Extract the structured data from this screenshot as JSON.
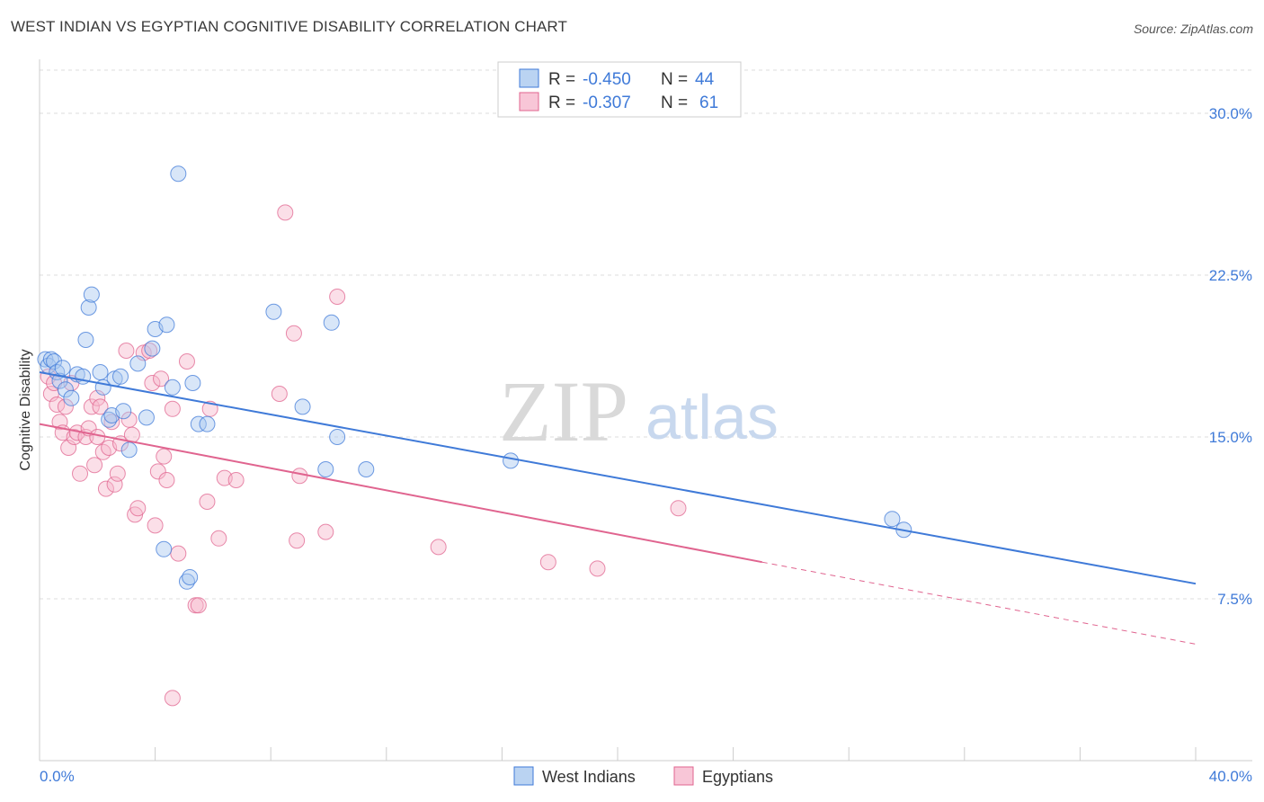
{
  "title": "WEST INDIAN VS EGYPTIAN COGNITIVE DISABILITY CORRELATION CHART",
  "source": "Source: ZipAtlas.com",
  "colors": {
    "blue": "#3f7ad8",
    "pink": "#e0648f",
    "blue_fill": "#a9c8ef",
    "pink_fill": "#f6b8cd"
  },
  "legend": {
    "row1": {
      "r_label": "R =",
      "r_value": "-0.450",
      "n_label": "N =",
      "n_value": "44"
    },
    "row2": {
      "r_label": "R =",
      "r_value": "-0.307",
      "n_label": "N =",
      "n_value": "61"
    }
  },
  "bottom_legend": {
    "series1": "West Indians",
    "series2": "Egyptians"
  },
  "watermark": {
    "zip": "ZIP",
    "atlas": "atlas"
  },
  "chart_data": {
    "type": "scatter",
    "ylabel": "Cognitive Disability",
    "xlabel": "",
    "xlim": [
      0,
      40
    ],
    "ylim": [
      0,
      32
    ],
    "y_ticks": [
      {
        "value": 7.5,
        "label": "7.5%"
      },
      {
        "value": 15.0,
        "label": "15.0%"
      },
      {
        "value": 22.5,
        "label": "22.5%"
      },
      {
        "value": 30.0,
        "label": "30.0%"
      }
    ],
    "x_tick_labels": {
      "min": "0.0%",
      "max": "40.0%"
    },
    "series": [
      {
        "name": "West Indians",
        "r": -0.45,
        "n": 44,
        "trend": {
          "x0": 0,
          "y0": 18.0,
          "x1": 40,
          "y1": 8.2
        },
        "points": [
          [
            0.2,
            18.6
          ],
          [
            0.3,
            18.3
          ],
          [
            0.4,
            18.6
          ],
          [
            0.5,
            18.5
          ],
          [
            0.6,
            18.0
          ],
          [
            0.7,
            17.6
          ],
          [
            0.8,
            18.2
          ],
          [
            0.9,
            17.2
          ],
          [
            1.1,
            16.8
          ],
          [
            1.3,
            17.9
          ],
          [
            1.5,
            17.8
          ],
          [
            1.6,
            19.5
          ],
          [
            1.7,
            21.0
          ],
          [
            1.8,
            21.6
          ],
          [
            2.1,
            18.0
          ],
          [
            2.2,
            17.3
          ],
          [
            2.4,
            15.8
          ],
          [
            2.5,
            16.0
          ],
          [
            2.6,
            17.7
          ],
          [
            2.8,
            17.8
          ],
          [
            2.9,
            16.2
          ],
          [
            3.1,
            14.4
          ],
          [
            3.4,
            18.4
          ],
          [
            3.7,
            15.9
          ],
          [
            3.9,
            19.1
          ],
          [
            4.0,
            20.0
          ],
          [
            4.4,
            20.2
          ],
          [
            4.6,
            17.3
          ],
          [
            4.8,
            27.2
          ],
          [
            5.1,
            8.3
          ],
          [
            5.2,
            8.5
          ],
          [
            5.3,
            17.5
          ],
          [
            5.5,
            15.6
          ],
          [
            5.8,
            15.6
          ],
          [
            4.3,
            9.8
          ],
          [
            8.1,
            20.8
          ],
          [
            9.1,
            16.4
          ],
          [
            9.9,
            13.5
          ],
          [
            10.1,
            20.3
          ],
          [
            10.3,
            15.0
          ],
          [
            11.3,
            13.5
          ],
          [
            16.3,
            13.9
          ],
          [
            29.5,
            11.2
          ],
          [
            29.9,
            10.7
          ]
        ]
      },
      {
        "name": "Egyptians",
        "r": -0.307,
        "n": 61,
        "trend": {
          "x0": 0,
          "y0": 15.6,
          "x1": 25.0,
          "y1": 9.2,
          "dash_to": {
            "x": 40,
            "y": 5.4
          }
        },
        "points": [
          [
            0.3,
            17.8
          ],
          [
            0.4,
            17.0
          ],
          [
            0.5,
            17.5
          ],
          [
            0.6,
            16.5
          ],
          [
            0.7,
            15.7
          ],
          [
            0.8,
            15.2
          ],
          [
            0.9,
            16.4
          ],
          [
            1.0,
            14.5
          ],
          [
            1.1,
            17.5
          ],
          [
            1.2,
            15.0
          ],
          [
            1.3,
            15.2
          ],
          [
            1.4,
            13.3
          ],
          [
            1.6,
            15.0
          ],
          [
            1.7,
            15.4
          ],
          [
            1.8,
            16.4
          ],
          [
            1.9,
            13.7
          ],
          [
            2.0,
            16.8
          ],
          [
            2.1,
            16.4
          ],
          [
            2.2,
            14.3
          ],
          [
            2.3,
            12.6
          ],
          [
            2.4,
            14.5
          ],
          [
            2.5,
            15.7
          ],
          [
            2.6,
            12.8
          ],
          [
            2.7,
            13.3
          ],
          [
            2.8,
            14.7
          ],
          [
            3.0,
            19.0
          ],
          [
            3.1,
            15.8
          ],
          [
            3.2,
            15.1
          ],
          [
            3.3,
            11.4
          ],
          [
            3.4,
            11.7
          ],
          [
            3.6,
            18.9
          ],
          [
            3.8,
            19.0
          ],
          [
            3.9,
            17.5
          ],
          [
            4.0,
            10.9
          ],
          [
            4.1,
            13.4
          ],
          [
            4.2,
            17.7
          ],
          [
            4.3,
            14.1
          ],
          [
            4.4,
            13.0
          ],
          [
            4.6,
            16.3
          ],
          [
            4.8,
            9.6
          ],
          [
            5.1,
            18.5
          ],
          [
            5.4,
            7.2
          ],
          [
            5.5,
            7.2
          ],
          [
            5.8,
            12.0
          ],
          [
            5.9,
            16.3
          ],
          [
            6.2,
            10.3
          ],
          [
            6.4,
            13.1
          ],
          [
            6.8,
            13.0
          ],
          [
            4.6,
            2.9
          ],
          [
            8.3,
            17.0
          ],
          [
            8.8,
            19.8
          ],
          [
            8.9,
            10.2
          ],
          [
            9.0,
            13.2
          ],
          [
            9.9,
            10.6
          ],
          [
            10.3,
            21.5
          ],
          [
            13.8,
            9.9
          ],
          [
            22.1,
            11.7
          ],
          [
            17.6,
            9.2
          ],
          [
            19.3,
            8.9
          ],
          [
            8.5,
            25.4
          ],
          [
            2.0,
            15.0
          ]
        ]
      }
    ]
  }
}
